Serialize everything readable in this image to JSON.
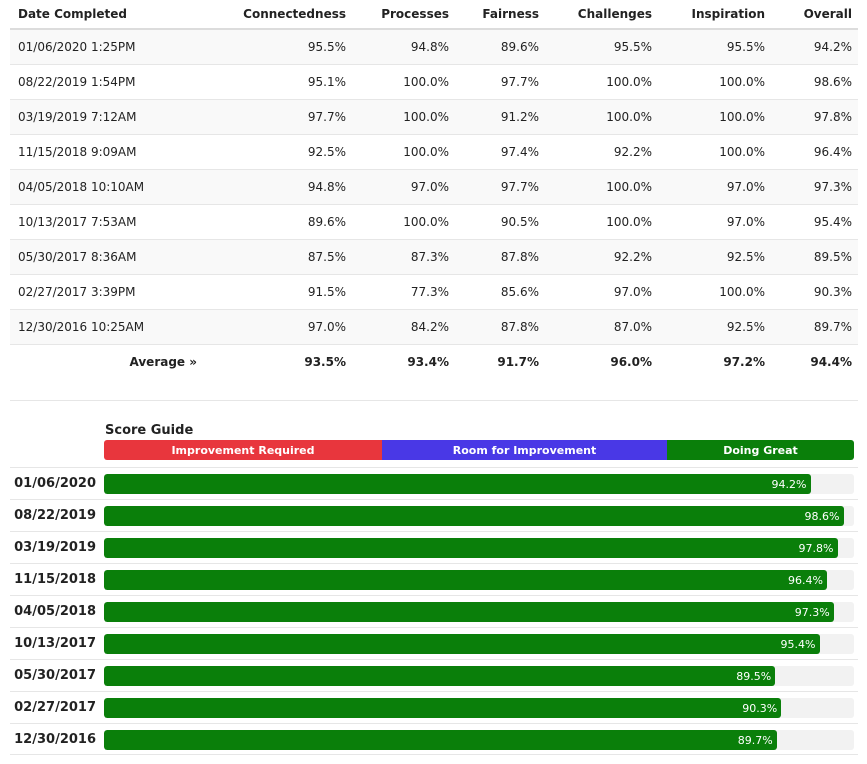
{
  "colors": {
    "improvement_required": "#e8363d",
    "room_for_improvement": "#4938e6",
    "doing_great": "#0a7f0a"
  },
  "results_table": {
    "columns": [
      "Date Completed",
      "Connectedness",
      "Processes",
      "Fairness",
      "Challenges",
      "Inspiration",
      "Overall"
    ],
    "rows": [
      [
        "01/06/2020 1:25PM",
        "95.5%",
        "94.8%",
        "89.6%",
        "95.5%",
        "95.5%",
        "94.2%"
      ],
      [
        "08/22/2019 1:54PM",
        "95.1%",
        "100.0%",
        "97.7%",
        "100.0%",
        "100.0%",
        "98.6%"
      ],
      [
        "03/19/2019 7:12AM",
        "97.7%",
        "100.0%",
        "91.2%",
        "100.0%",
        "100.0%",
        "97.8%"
      ],
      [
        "11/15/2018 9:09AM",
        "92.5%",
        "100.0%",
        "97.4%",
        "92.2%",
        "100.0%",
        "96.4%"
      ],
      [
        "04/05/2018 10:10AM",
        "94.8%",
        "97.0%",
        "97.7%",
        "100.0%",
        "97.0%",
        "97.3%"
      ],
      [
        "10/13/2017 7:53AM",
        "89.6%",
        "100.0%",
        "90.5%",
        "100.0%",
        "97.0%",
        "95.4%"
      ],
      [
        "05/30/2017 8:36AM",
        "87.5%",
        "87.3%",
        "87.8%",
        "92.2%",
        "92.5%",
        "89.5%"
      ],
      [
        "02/27/2017 3:39PM",
        "91.5%",
        "77.3%",
        "85.6%",
        "97.0%",
        "100.0%",
        "90.3%"
      ],
      [
        "12/30/2016 10:25AM",
        "97.0%",
        "84.2%",
        "87.8%",
        "87.0%",
        "92.5%",
        "89.7%"
      ]
    ],
    "average": {
      "label": "Average »",
      "values": [
        "93.5%",
        "93.4%",
        "91.7%",
        "96.0%",
        "97.2%",
        "94.4%"
      ]
    }
  },
  "score_guide": {
    "title": "Score Guide",
    "segments": [
      "Improvement Required",
      "Room for Improvement",
      "Doing Great"
    ]
  },
  "score_bars": [
    {
      "date": "01/06/2020",
      "value": 94.2,
      "label": "94.2%"
    },
    {
      "date": "08/22/2019",
      "value": 98.6,
      "label": "98.6%"
    },
    {
      "date": "03/19/2019",
      "value": 97.8,
      "label": "97.8%"
    },
    {
      "date": "11/15/2018",
      "value": 96.4,
      "label": "96.4%"
    },
    {
      "date": "04/05/2018",
      "value": 97.3,
      "label": "97.3%"
    },
    {
      "date": "10/13/2017",
      "value": 95.4,
      "label": "95.4%"
    },
    {
      "date": "05/30/2017",
      "value": 89.5,
      "label": "89.5%"
    },
    {
      "date": "02/27/2017",
      "value": 90.3,
      "label": "90.3%"
    },
    {
      "date": "12/30/2016",
      "value": 89.7,
      "label": "89.7%"
    }
  ]
}
